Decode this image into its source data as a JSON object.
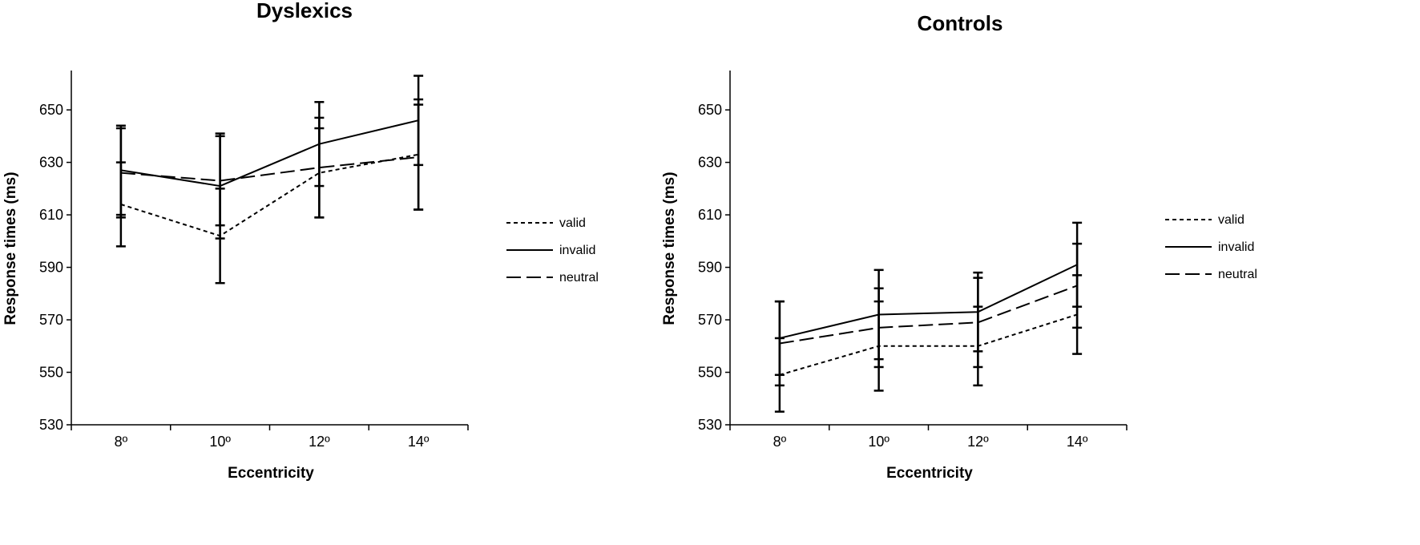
{
  "chart_data": [
    {
      "type": "line",
      "title": "Dyslexics",
      "xlabel": "Eccentricity",
      "ylabel": "Response times (ms)",
      "categories": [
        "8º",
        "10º",
        "12º",
        "14º"
      ],
      "ylim": [
        530,
        665
      ],
      "yticks": [
        530,
        550,
        570,
        590,
        610,
        630,
        650
      ],
      "grid": false,
      "legend_position": "right",
      "series": [
        {
          "name": "valid",
          "style": "dotted",
          "values": [
            614,
            602,
            626,
            633
          ],
          "error": [
            16,
            18,
            17,
            21
          ]
        },
        {
          "name": "invalid",
          "style": "solid",
          "values": [
            627,
            621,
            637,
            646
          ],
          "error": [
            17,
            20,
            16,
            17
          ]
        },
        {
          "name": "neutral",
          "style": "dashed",
          "values": [
            626,
            623,
            628,
            632
          ],
          "error": [
            17,
            17,
            19,
            20
          ]
        }
      ]
    },
    {
      "type": "line",
      "title": "Controls",
      "xlabel": "Eccentricity",
      "ylabel": "Response times (ms)",
      "categories": [
        "8º",
        "10º",
        "12º",
        "14º"
      ],
      "ylim": [
        530,
        665
      ],
      "yticks": [
        530,
        550,
        570,
        590,
        610,
        630,
        650
      ],
      "grid": false,
      "legend_position": "right",
      "series": [
        {
          "name": "valid",
          "style": "dotted",
          "values": [
            549,
            560,
            560,
            572
          ],
          "error": [
            14,
            17,
            15,
            15
          ]
        },
        {
          "name": "invalid",
          "style": "solid",
          "values": [
            563,
            572,
            573,
            591
          ],
          "error": [
            14,
            17,
            15,
            16
          ]
        },
        {
          "name": "neutral",
          "style": "dashed",
          "values": [
            561,
            567,
            569,
            583
          ],
          "error": [
            16,
            15,
            17,
            16
          ]
        }
      ]
    }
  ]
}
